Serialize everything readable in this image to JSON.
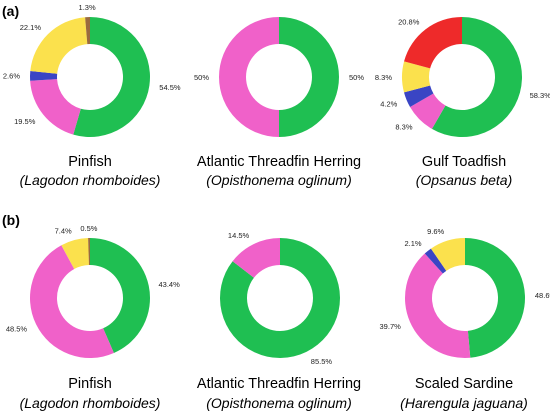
{
  "figure": {
    "panels": [
      {
        "label": "(a)",
        "charts": [
          {
            "common_name": "Pinfish",
            "scientific_name": "(Lagodon rhomboides)"
          },
          {
            "common_name": "Atlantic Threadfin Herring",
            "scientific_name": "(Opisthonema oglinum)"
          },
          {
            "common_name": "Gulf Toadfish",
            "scientific_name": "(Opsanus beta)"
          }
        ]
      },
      {
        "label": "(b)",
        "charts": [
          {
            "common_name": "Pinfish",
            "scientific_name": "(Lagodon rhomboides)"
          },
          {
            "common_name": "Atlantic Threadfin Herring",
            "scientific_name": "(Opisthonema oglinum)"
          },
          {
            "common_name": "Scaled Sardine",
            "scientific_name": "(Harengula jaguana)"
          }
        ]
      }
    ]
  },
  "colors": {
    "green": "#1fbf52",
    "pink": "#f061c9",
    "blue": "#3a45c4",
    "yellow": "#fbe14d",
    "red": "#ee2a2a",
    "brown": "#9a6b3e"
  },
  "chart_data": [
    {
      "type": "pie",
      "panel": "(a)",
      "name": "Pinfish (Lagodon rhomboides)",
      "slices": [
        {
          "label": "54.5%",
          "value": 54.5,
          "color": "#1fbf52"
        },
        {
          "label": "19.5%",
          "value": 19.5,
          "color": "#f061c9"
        },
        {
          "label": "2.6%",
          "value": 2.6,
          "color": "#3a45c4"
        },
        {
          "label": "22.1%",
          "value": 22.1,
          "color": "#fbe14d"
        },
        {
          "label": "1.3%",
          "value": 1.3,
          "color": "#9a6b3e"
        }
      ]
    },
    {
      "type": "pie",
      "panel": "(a)",
      "name": "Atlantic Threadfin Herring (Opisthonema oglinum)",
      "slices": [
        {
          "label": "50%",
          "value": 50,
          "color": "#1fbf52"
        },
        {
          "label": "50%",
          "value": 50,
          "color": "#f061c9"
        }
      ]
    },
    {
      "type": "pie",
      "panel": "(a)",
      "name": "Gulf Toadfish (Opsanus beta)",
      "slices": [
        {
          "label": "58.3%",
          "value": 58.3,
          "color": "#1fbf52"
        },
        {
          "label": "8.3%",
          "value": 8.3,
          "color": "#f061c9"
        },
        {
          "label": "4.2%",
          "value": 4.2,
          "color": "#3a45c4"
        },
        {
          "label": "8.3%",
          "value": 8.3,
          "color": "#fbe14d"
        },
        {
          "label": "20.8%",
          "value": 20.8,
          "color": "#ee2a2a"
        }
      ]
    },
    {
      "type": "pie",
      "panel": "(b)",
      "name": "Pinfish (Lagodon rhomboides)",
      "slices": [
        {
          "label": "43.4%",
          "value": 43.4,
          "color": "#1fbf52"
        },
        {
          "label": "48.5%",
          "value": 48.5,
          "color": "#f061c9"
        },
        {
          "label": "7.4%",
          "value": 7.4,
          "color": "#fbe14d"
        },
        {
          "label": "0.5%",
          "value": 0.5,
          "color": "#9a6b3e"
        }
      ]
    },
    {
      "type": "pie",
      "panel": "(b)",
      "name": "Atlantic Threadfin Herring (Opisthonema oglinum)",
      "slices": [
        {
          "label": "85.5%",
          "value": 85.5,
          "color": "#1fbf52"
        },
        {
          "label": "14.5%",
          "value": 14.5,
          "color": "#f061c9"
        }
      ]
    },
    {
      "type": "pie",
      "panel": "(b)",
      "name": "Scaled Sardine (Harengula jaguana)",
      "slices": [
        {
          "label": "48.6%",
          "value": 48.6,
          "color": "#1fbf52"
        },
        {
          "label": "39.7%",
          "value": 39.7,
          "color": "#f061c9"
        },
        {
          "label": "2.1%",
          "value": 2.1,
          "color": "#3a45c4"
        },
        {
          "label": "9.6%",
          "value": 9.6,
          "color": "#fbe14d"
        }
      ]
    }
  ]
}
